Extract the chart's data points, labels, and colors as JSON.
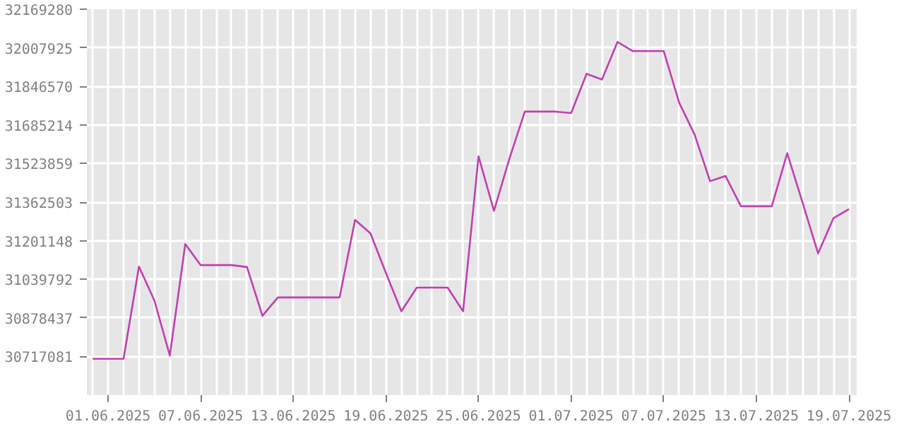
{
  "chart_data": {
    "type": "line",
    "color": "#c040b0",
    "marker": "none",
    "line_style": "solid",
    "grid": true,
    "x": [
      "2025-05-31",
      "2025-06-01",
      "2025-06-02",
      "2025-06-03",
      "2025-06-04",
      "2025-06-05",
      "2025-06-06",
      "2025-06-07",
      "2025-06-08",
      "2025-06-09",
      "2025-06-10",
      "2025-06-11",
      "2025-06-12",
      "2025-06-13",
      "2025-06-14",
      "2025-06-15",
      "2025-06-16",
      "2025-06-17",
      "2025-06-18",
      "2025-06-19",
      "2025-06-20",
      "2025-06-21",
      "2025-06-22",
      "2025-06-23",
      "2025-06-24",
      "2025-06-25",
      "2025-06-26",
      "2025-06-27",
      "2025-06-28",
      "2025-06-29",
      "2025-06-30",
      "2025-07-01",
      "2025-07-02",
      "2025-07-03",
      "2025-07-04",
      "2025-07-05",
      "2025-07-06",
      "2025-07-07",
      "2025-07-08",
      "2025-07-09",
      "2025-07-10",
      "2025-07-11",
      "2025-07-12",
      "2025-07-13",
      "2025-07-14",
      "2025-07-15",
      "2025-07-16",
      "2025-07-17",
      "2025-07-18",
      "2025-07-19"
    ],
    "values": [
      30707000,
      30707000,
      30707000,
      31093000,
      30951000,
      30721000,
      31187000,
      31099000,
      31099000,
      31099000,
      31091000,
      30887000,
      30964000,
      30964000,
      30964000,
      30964000,
      30964000,
      31288000,
      31232000,
      31066000,
      30906000,
      31005000,
      31005000,
      31005000,
      30906000,
      31554000,
      31326000,
      31544000,
      31741000,
      31741000,
      31741000,
      31735000,
      31899000,
      31875000,
      32032000,
      31994000,
      31994000,
      31994000,
      31778000,
      31645000,
      31450000,
      31472000,
      31345000,
      31345000,
      31345000,
      31567000,
      31359000,
      31148000,
      31296000,
      31333000
    ],
    "xlim": [
      "2025-05-30T15:00",
      "2025-07-19T12:00"
    ],
    "xticks": [
      {
        "value": "2025-05-31",
        "label": null
      },
      {
        "value": "2025-06-01",
        "label": "01.06.2025"
      },
      {
        "value": "2025-06-02",
        "label": null
      },
      {
        "value": "2025-06-03",
        "label": null
      },
      {
        "value": "2025-06-04",
        "label": null
      },
      {
        "value": "2025-06-05",
        "label": null
      },
      {
        "value": "2025-06-06",
        "label": null
      },
      {
        "value": "2025-06-07",
        "label": "07.06.2025"
      },
      {
        "value": "2025-06-08",
        "label": null
      },
      {
        "value": "2025-06-09",
        "label": null
      },
      {
        "value": "2025-06-10",
        "label": null
      },
      {
        "value": "2025-06-11",
        "label": null
      },
      {
        "value": "2025-06-12",
        "label": null
      },
      {
        "value": "2025-06-13",
        "label": "13.06.2025"
      },
      {
        "value": "2025-06-14",
        "label": null
      },
      {
        "value": "2025-06-15",
        "label": null
      },
      {
        "value": "2025-06-16",
        "label": null
      },
      {
        "value": "2025-06-17",
        "label": null
      },
      {
        "value": "2025-06-18",
        "label": null
      },
      {
        "value": "2025-06-19",
        "label": "19.06.2025"
      },
      {
        "value": "2025-06-20",
        "label": null
      },
      {
        "value": "2025-06-21",
        "label": null
      },
      {
        "value": "2025-06-22",
        "label": null
      },
      {
        "value": "2025-06-23",
        "label": null
      },
      {
        "value": "2025-06-24",
        "label": null
      },
      {
        "value": "2025-06-25",
        "label": "25.06.2025"
      },
      {
        "value": "2025-06-26",
        "label": null
      },
      {
        "value": "2025-06-27",
        "label": null
      },
      {
        "value": "2025-06-28",
        "label": null
      },
      {
        "value": "2025-06-29",
        "label": null
      },
      {
        "value": "2025-06-30",
        "label": null
      },
      {
        "value": "2025-07-01",
        "label": "01.07.2025"
      },
      {
        "value": "2025-07-02",
        "label": null
      },
      {
        "value": "2025-07-03",
        "label": null
      },
      {
        "value": "2025-07-04",
        "label": null
      },
      {
        "value": "2025-07-05",
        "label": null
      },
      {
        "value": "2025-07-06",
        "label": null
      },
      {
        "value": "2025-07-07",
        "label": "07.07.2025"
      },
      {
        "value": "2025-07-08",
        "label": null
      },
      {
        "value": "2025-07-09",
        "label": null
      },
      {
        "value": "2025-07-10",
        "label": null
      },
      {
        "value": "2025-07-11",
        "label": null
      },
      {
        "value": "2025-07-12",
        "label": null
      },
      {
        "value": "2025-07-13",
        "label": "13.07.2025"
      },
      {
        "value": "2025-07-14",
        "label": null
      },
      {
        "value": "2025-07-15",
        "label": null
      },
      {
        "value": "2025-07-16",
        "label": null
      },
      {
        "value": "2025-07-17",
        "label": null
      },
      {
        "value": "2025-07-18",
        "label": null
      },
      {
        "value": "2025-07-19",
        "label": "19.07.2025"
      }
    ],
    "ylim": [
      30555726,
      32169280
    ],
    "yticks": [
      30717081,
      30878437,
      31039792,
      31201148,
      31362503,
      31523859,
      31685214,
      31846570,
      32007925,
      32169280
    ]
  }
}
